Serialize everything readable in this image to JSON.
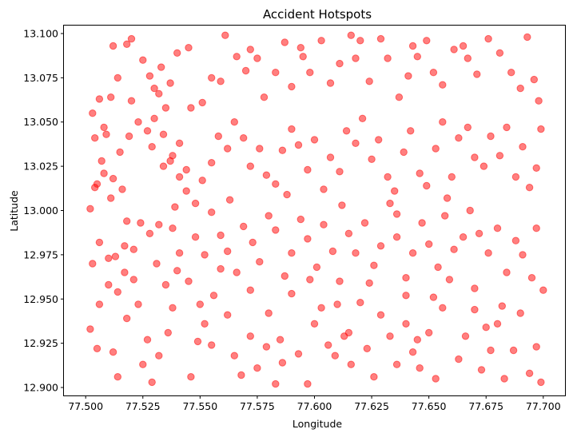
{
  "chart_data": {
    "type": "scatter",
    "title": "Accident Hotspots",
    "xlabel": "Longitude",
    "ylabel": "Latitude",
    "xlim": [
      77.4905,
      77.7095
    ],
    "ylim": [
      12.8955,
      13.1045
    ],
    "xticks": [
      77.5,
      77.525,
      77.55,
      77.575,
      77.6,
      77.625,
      77.65,
      77.675,
      77.7
    ],
    "xtick_labels": [
      "77.500",
      "77.525",
      "77.550",
      "77.575",
      "77.600",
      "77.625",
      "77.650",
      "77.675",
      "77.700"
    ],
    "yticks": [
      12.9,
      12.925,
      12.95,
      12.975,
      13.0,
      13.025,
      13.05,
      13.075,
      13.1
    ],
    "ytick_labels": [
      "12.900",
      "12.925",
      "12.950",
      "12.975",
      "13.000",
      "13.025",
      "13.050",
      "13.075",
      "13.100"
    ],
    "grid": false,
    "marker_color": "#ff0000",
    "marker_alpha": 0.5,
    "series": [
      {
        "points": [
          [
            77.503,
            13.055
          ],
          [
            77.504,
            13.041
          ],
          [
            77.506,
            13.063
          ],
          [
            77.508,
            13.047
          ],
          [
            77.512,
            13.093
          ],
          [
            77.514,
            13.075
          ],
          [
            77.518,
            13.094
          ],
          [
            77.511,
            13.064
          ],
          [
            77.509,
            13.043
          ],
          [
            77.502,
            13.001
          ],
          [
            77.505,
            13.015
          ],
          [
            77.507,
            13.028
          ],
          [
            77.512,
            13.018
          ],
          [
            77.516,
            13.012
          ],
          [
            77.52,
            13.062
          ],
          [
            77.525,
            13.085
          ],
          [
            77.528,
            13.076
          ],
          [
            77.53,
            13.069
          ],
          [
            77.533,
            13.081
          ],
          [
            77.537,
            13.072
          ],
          [
            77.54,
            13.089
          ],
          [
            77.535,
            13.058
          ],
          [
            77.532,
            13.066
          ],
          [
            77.529,
            13.036
          ],
          [
            77.534,
            13.025
          ],
          [
            77.538,
            13.031
          ],
          [
            77.541,
            13.038
          ],
          [
            77.544,
            13.023
          ],
          [
            77.546,
            13.058
          ],
          [
            77.551,
            13.061
          ],
          [
            77.555,
            13.075
          ],
          [
            77.559,
            13.073
          ],
          [
            77.561,
            13.099
          ],
          [
            77.566,
            13.087
          ],
          [
            77.572,
            13.091
          ],
          [
            77.575,
            13.086
          ],
          [
            77.578,
            13.064
          ],
          [
            77.583,
            13.078
          ],
          [
            77.587,
            13.095
          ],
          [
            77.59,
            13.07
          ],
          [
            77.594,
            13.092
          ],
          [
            77.598,
            13.078
          ],
          [
            77.603,
            13.096
          ],
          [
            77.607,
            13.072
          ],
          [
            77.611,
            13.083
          ],
          [
            77.616,
            13.099
          ],
          [
            77.62,
            13.096
          ],
          [
            77.624,
            13.073
          ],
          [
            77.629,
            13.097
          ],
          [
            77.632,
            13.086
          ],
          [
            77.637,
            13.064
          ],
          [
            77.641,
            13.076
          ],
          [
            77.645,
            13.087
          ],
          [
            77.649,
            13.096
          ],
          [
            77.652,
            13.078
          ],
          [
            77.656,
            13.071
          ],
          [
            77.661,
            13.091
          ],
          [
            77.667,
            13.086
          ],
          [
            77.671,
            13.077
          ],
          [
            77.676,
            13.097
          ],
          [
            77.681,
            13.089
          ],
          [
            77.686,
            13.078
          ],
          [
            77.693,
            13.098
          ],
          [
            77.696,
            13.074
          ],
          [
            77.698,
            13.062
          ],
          [
            77.502,
            12.933
          ],
          [
            77.506,
            12.947
          ],
          [
            77.51,
            12.958
          ],
          [
            77.513,
            12.974
          ],
          [
            77.517,
            12.98
          ],
          [
            77.514,
            12.906
          ],
          [
            77.512,
            12.92
          ],
          [
            77.518,
            12.939
          ],
          [
            77.521,
            12.961
          ],
          [
            77.523,
            12.947
          ],
          [
            77.527,
            12.927
          ],
          [
            77.529,
            12.903
          ],
          [
            77.532,
            12.918
          ],
          [
            77.536,
            12.931
          ],
          [
            77.538,
            12.945
          ],
          [
            77.54,
            12.966
          ],
          [
            77.546,
            12.906
          ],
          [
            77.549,
            12.926
          ],
          [
            77.552,
            12.936
          ],
          [
            77.556,
            12.952
          ],
          [
            77.559,
            12.967
          ],
          [
            77.562,
            12.941
          ],
          [
            77.565,
            12.918
          ],
          [
            77.568,
            12.907
          ],
          [
            77.572,
            12.929
          ],
          [
            77.575,
            12.911
          ],
          [
            77.579,
            12.923
          ],
          [
            77.583,
            12.902
          ],
          [
            77.586,
            12.914
          ],
          [
            77.59,
            12.953
          ],
          [
            77.593,
            12.919
          ],
          [
            77.597,
            12.902
          ],
          [
            77.6,
            12.936
          ],
          [
            77.603,
            12.945
          ],
          [
            77.606,
            12.924
          ],
          [
            77.609,
            12.918
          ],
          [
            77.613,
            12.929
          ],
          [
            77.616,
            12.913
          ],
          [
            77.62,
            12.948
          ],
          [
            77.623,
            12.922
          ],
          [
            77.626,
            12.906
          ],
          [
            77.629,
            12.941
          ],
          [
            77.633,
            12.929
          ],
          [
            77.636,
            12.913
          ],
          [
            77.64,
            12.936
          ],
          [
            77.643,
            12.92
          ],
          [
            77.646,
            12.911
          ],
          [
            77.65,
            12.931
          ],
          [
            77.653,
            12.905
          ],
          [
            77.656,
            12.945
          ],
          [
            77.659,
            12.961
          ],
          [
            77.663,
            12.916
          ],
          [
            77.666,
            12.929
          ],
          [
            77.67,
            12.944
          ],
          [
            77.673,
            12.91
          ],
          [
            77.677,
            12.921
          ],
          [
            77.68,
            12.936
          ],
          [
            77.683,
            12.905
          ],
          [
            77.687,
            12.921
          ],
          [
            77.69,
            12.942
          ],
          [
            77.694,
            12.908
          ],
          [
            77.697,
            12.923
          ],
          [
            77.699,
            12.903
          ],
          [
            77.695,
            12.962
          ],
          [
            77.691,
            12.975
          ],
          [
            77.688,
            12.983
          ],
          [
            77.684,
            12.965
          ],
          [
            77.68,
            12.99
          ],
          [
            77.676,
            12.976
          ],
          [
            77.672,
            12.987
          ],
          [
            77.668,
            13.0
          ],
          [
            77.665,
            12.985
          ],
          [
            77.661,
            12.978
          ],
          [
            77.657,
            12.997
          ],
          [
            77.654,
            12.968
          ],
          [
            77.65,
            12.981
          ],
          [
            77.647,
            12.993
          ],
          [
            77.643,
            12.976
          ],
          [
            77.64,
            12.962
          ],
          [
            77.636,
            12.985
          ],
          [
            77.633,
            13.004
          ],
          [
            77.629,
            12.98
          ],
          [
            77.626,
            12.969
          ],
          [
            77.622,
            12.993
          ],
          [
            77.618,
            12.976
          ],
          [
            77.615,
            12.987
          ],
          [
            77.611,
            12.96
          ],
          [
            77.608,
            12.977
          ],
          [
            77.604,
            12.992
          ],
          [
            77.601,
            12.968
          ],
          [
            77.597,
            12.984
          ],
          [
            77.594,
            12.995
          ],
          [
            77.59,
            12.976
          ],
          [
            77.587,
            12.963
          ],
          [
            77.583,
            12.989
          ],
          [
            77.58,
            12.997
          ],
          [
            77.576,
            12.971
          ],
          [
            77.573,
            12.982
          ],
          [
            77.569,
            12.991
          ],
          [
            77.566,
            12.965
          ],
          [
            77.562,
            12.977
          ],
          [
            77.559,
            12.986
          ],
          [
            77.555,
            12.999
          ],
          [
            77.552,
            12.975
          ],
          [
            77.548,
            12.985
          ],
          [
            77.545,
            12.96
          ],
          [
            77.541,
            12.976
          ],
          [
            77.538,
            12.99
          ],
          [
            77.535,
            12.958
          ],
          [
            77.531,
            12.97
          ],
          [
            77.528,
            12.987
          ],
          [
            77.524,
            12.993
          ],
          [
            77.521,
            12.978
          ],
          [
            77.517,
            12.965
          ],
          [
            77.514,
            12.954
          ],
          [
            77.51,
            12.973
          ],
          [
            77.506,
            12.982
          ],
          [
            77.503,
            12.97
          ],
          [
            77.504,
            13.013
          ],
          [
            77.508,
            13.021
          ],
          [
            77.511,
            13.007
          ],
          [
            77.515,
            13.033
          ],
          [
            77.519,
            13.042
          ],
          [
            77.523,
            13.05
          ],
          [
            77.527,
            13.045
          ],
          [
            77.53,
            13.052
          ],
          [
            77.534,
            13.043
          ],
          [
            77.537,
            13.028
          ],
          [
            77.541,
            13.019
          ],
          [
            77.544,
            13.011
          ],
          [
            77.548,
            13.004
          ],
          [
            77.551,
            13.017
          ],
          [
            77.555,
            13.027
          ],
          [
            77.558,
            13.042
          ],
          [
            77.562,
            13.035
          ],
          [
            77.565,
            13.05
          ],
          [
            77.569,
            13.041
          ],
          [
            77.572,
            13.025
          ],
          [
            77.576,
            13.035
          ],
          [
            77.579,
            13.02
          ],
          [
            77.583,
            13.015
          ],
          [
            77.586,
            13.034
          ],
          [
            77.59,
            13.046
          ],
          [
            77.593,
            13.037
          ],
          [
            77.597,
            13.023
          ],
          [
            77.6,
            13.04
          ],
          [
            77.604,
            13.012
          ],
          [
            77.607,
            13.03
          ],
          [
            77.611,
            13.022
          ],
          [
            77.614,
            13.045
          ],
          [
            77.618,
            13.038
          ],
          [
            77.621,
            13.052
          ],
          [
            77.625,
            13.029
          ],
          [
            77.628,
            13.04
          ],
          [
            77.632,
            13.019
          ],
          [
            77.635,
            13.011
          ],
          [
            77.639,
            13.033
          ],
          [
            77.642,
            13.045
          ],
          [
            77.646,
            13.021
          ],
          [
            77.649,
            13.014
          ],
          [
            77.653,
            13.035
          ],
          [
            77.656,
            13.05
          ],
          [
            77.66,
            13.019
          ],
          [
            77.663,
            13.041
          ],
          [
            77.667,
            13.047
          ],
          [
            77.67,
            13.03
          ],
          [
            77.674,
            13.025
          ],
          [
            77.677,
            13.042
          ],
          [
            77.681,
            13.031
          ],
          [
            77.684,
            13.047
          ],
          [
            77.688,
            13.019
          ],
          [
            77.691,
            13.036
          ],
          [
            77.694,
            13.013
          ],
          [
            77.697,
            13.024
          ],
          [
            77.699,
            13.046
          ],
          [
            77.52,
            13.097
          ],
          [
            77.545,
            13.092
          ],
          [
            77.57,
            13.079
          ],
          [
            77.595,
            13.087
          ],
          [
            77.618,
            13.086
          ],
          [
            77.643,
            13.093
          ],
          [
            77.665,
            13.093
          ],
          [
            77.69,
            13.069
          ],
          [
            77.525,
            12.913
          ],
          [
            77.555,
            12.924
          ],
          [
            77.585,
            12.927
          ],
          [
            77.615,
            12.931
          ],
          [
            77.645,
            12.927
          ],
          [
            77.675,
            12.934
          ],
          [
            77.505,
            12.922
          ],
          [
            77.697,
            12.99
          ],
          [
            77.658,
            13.007
          ],
          [
            77.636,
            12.998
          ],
          [
            77.612,
            13.003
          ],
          [
            77.588,
            13.009
          ],
          [
            77.563,
            13.006
          ],
          [
            77.539,
            13.002
          ],
          [
            77.518,
            12.994
          ],
          [
            77.55,
            12.947
          ],
          [
            77.58,
            12.942
          ],
          [
            77.61,
            12.947
          ],
          [
            77.64,
            12.952
          ],
          [
            77.67,
            12.956
          ],
          [
            77.7,
            12.955
          ],
          [
            77.532,
            12.992
          ],
          [
            77.572,
            12.955
          ],
          [
            77.598,
            12.961
          ],
          [
            77.624,
            12.959
          ],
          [
            77.652,
            12.951
          ],
          [
            77.682,
            12.946
          ]
        ]
      }
    ]
  }
}
